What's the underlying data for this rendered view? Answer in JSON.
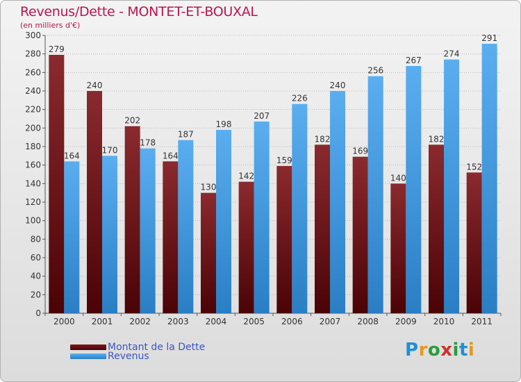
{
  "title": "Revenus/Dette - MONTET-ET-BOUXAL",
  "subtitle": "(en milliers d'€)",
  "colors": {
    "dette": "#7a1a1e",
    "revenus": "#4ea3e6",
    "title": "#b5174f",
    "legend_text": "#3a55c0"
  },
  "legend": {
    "dette": "Montant de la Dette",
    "revenus": "Revenus"
  },
  "logo": {
    "letters": [
      "P",
      "r",
      "o",
      "x",
      "i",
      "t",
      "i"
    ],
    "colors": [
      "#1f8fd6",
      "#e39a1f",
      "#2c9c3d",
      "#d32f2f",
      "#2c9c3d",
      "#1f8fd6",
      "#e39a1f"
    ]
  },
  "chart_data": {
    "type": "bar",
    "title": "Revenus/Dette - MONTET-ET-BOUXAL",
    "ylabel": "(en milliers d'€)",
    "categories": [
      "2000",
      "2001",
      "2002",
      "2003",
      "2004",
      "2005",
      "2006",
      "2007",
      "2008",
      "2009",
      "2010",
      "2011"
    ],
    "series": [
      {
        "name": "Montant de la Dette",
        "values": [
          279,
          240,
          202,
          164,
          130,
          142,
          159,
          182,
          169,
          140,
          182,
          152
        ]
      },
      {
        "name": "Revenus",
        "values": [
          164,
          170,
          178,
          187,
          198,
          207,
          226,
          240,
          256,
          267,
          274,
          291
        ]
      }
    ],
    "ylim": [
      0,
      300
    ],
    "yticks": [
      0,
      20,
      40,
      60,
      80,
      100,
      120,
      140,
      160,
      180,
      200,
      220,
      240,
      260,
      280,
      300
    ],
    "grid": true,
    "legend_position": "bottom-left"
  }
}
